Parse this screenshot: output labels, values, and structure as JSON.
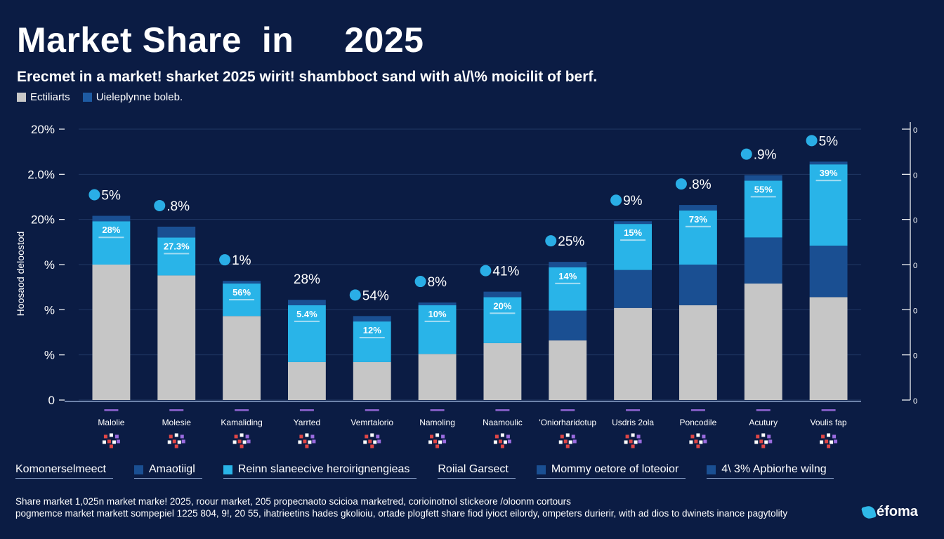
{
  "header": {
    "title": "Market Share  in     2025",
    "subtitle": "Erecmet in a market! sharket 2025 wirit! shambboct sand with a\\/\\% moicilit of berf."
  },
  "legend_top": [
    {
      "label": "Ectiliarts",
      "color": "#c8c8c8"
    },
    {
      "label": "Uieleplynne boleb.",
      "color": "#1e5ba3"
    }
  ],
  "colors": {
    "background": "#0b1c44",
    "gray": "#c6c6c6",
    "light_blue": "#29b4e8",
    "dark_blue": "#1a4f92",
    "bubble": "#2aaee6",
    "grid": "#3d5a8c"
  },
  "chart_data": {
    "type": "bar",
    "title": "Market Share  in     2025",
    "ylabel": "Hoosaod deloostod",
    "y_tick_labels": [
      "20%",
      "2.0%",
      "20%",
      "%",
      "%",
      "%",
      "0"
    ],
    "ylim": [
      0,
      100
    ],
    "right_axis_ticks": [
      "0",
      "0",
      "0",
      "0",
      "0",
      "0",
      "0"
    ],
    "categories": [
      "Malolie",
      "Molesie",
      "Kamaliding",
      "Yarrted",
      "Vemrtalorio",
      "Namoling",
      "Naamoulic",
      "'Oniorharidotup",
      "Usdris 2ola",
      "Poncodile",
      "Acutury",
      "Voulis fap"
    ],
    "category_icons": [
      "cluster",
      "cluster",
      "cluster",
      "cluster",
      "cluster",
      "cluster",
      "cluster",
      "cluster",
      "cluster",
      "cluster",
      "cluster",
      "cluster"
    ],
    "series": [
      {
        "name": "Ectiliarts",
        "color": "#c6c6c6",
        "values": [
          50,
          46,
          31,
          14,
          14,
          17,
          21,
          22,
          34,
          35,
          43,
          38
        ]
      },
      {
        "name": "Uieleplynne boleb.",
        "color": "#1a4f92",
        "values": [
          0,
          0,
          0,
          0,
          0,
          0,
          0,
          11,
          14,
          15,
          17,
          19
        ]
      },
      {
        "name": "Reinn slaneecive heroirignengieas",
        "color": "#29b4e8",
        "values": [
          16,
          14,
          12,
          21,
          15,
          18,
          17,
          16,
          17,
          20,
          21,
          30
        ]
      }
    ],
    "top_caps": [
      2,
      4,
      1,
      2,
      2,
      1,
      2,
      2,
      1,
      2,
      2,
      1
    ],
    "bar_labels": [
      "28%",
      "27.3%",
      "56%",
      "5.4%",
      "12%",
      "10%",
      "20%",
      "14%",
      "15%",
      "73%",
      "55%",
      "39%"
    ],
    "top_annotations": [
      {
        "text": "5%",
        "bubble": true
      },
      {
        "text": ".8%",
        "bubble": true
      },
      {
        "text": "1%",
        "bubble": true
      },
      {
        "text": "28%",
        "bubble": false
      },
      {
        "text": "54%",
        "bubble": true
      },
      {
        "text": "8%",
        "bubble": true
      },
      {
        "text": "41%",
        "bubble": true
      },
      {
        "text": "25%",
        "bubble": true
      },
      {
        "text": "9%",
        "bubble": true
      },
      {
        "text": ".8%",
        "bubble": true
      },
      {
        "text": ".9%",
        "bubble": true
      },
      {
        "text": "5%",
        "bubble": true
      }
    ],
    "grid": true
  },
  "bottom_legend": [
    {
      "label": "Komonerselmeect",
      "swatch": null
    },
    {
      "label": "Amaotiigl",
      "swatch": "#1a4f92"
    },
    {
      "label": "Reinn slaneecive heroirignengieas",
      "swatch": "#29b4e8"
    },
    {
      "label": "Roiial Garsect",
      "swatch": null
    },
    {
      "label": "Mommy oetore of loteoior",
      "swatch": "#1a4f92"
    },
    {
      "label": "4\\ 3% Apbiorhe wilng",
      "swatch": "#1a4f92"
    }
  ],
  "footer": {
    "line1": "Share market 1,025n market marke! 2025, roour market, 205 propecnaoto scicioa marketred, corioinotnol stickeore /oloonm cortours",
    "line2": "pogmemce market markett sompepiel 1225 804, 9!, 20 55, ihatrieetins hades gkolioiu, ortade plogfett share fiod iyioct eilordy, ompeters durierir, with ad dios to dwinets inance pagytolity"
  },
  "brand": {
    "name": "éfoma"
  }
}
